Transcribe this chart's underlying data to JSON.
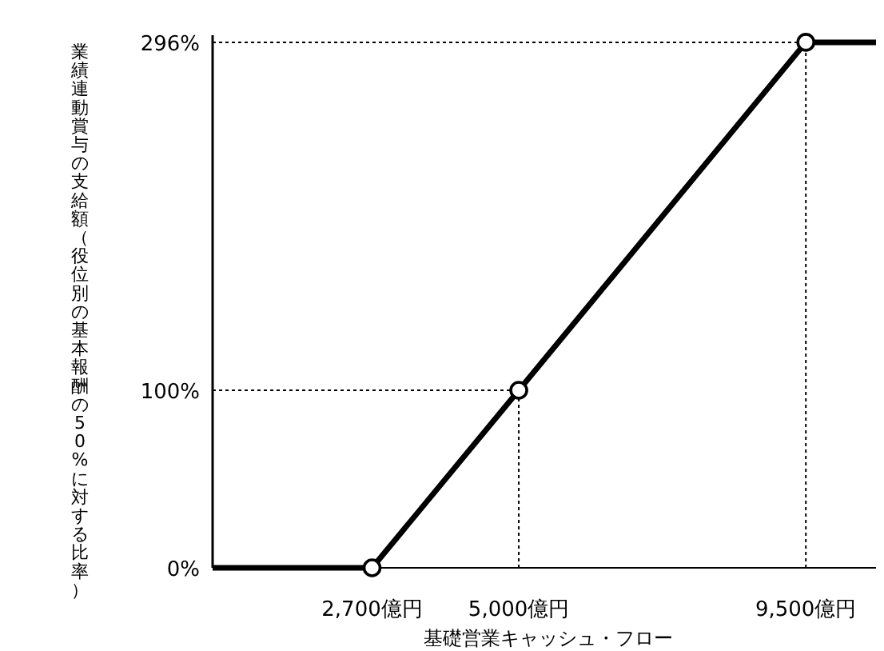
{
  "chart_data": {
    "type": "line",
    "xlabel": "基礎営業キャッシュ・フロー",
    "ylabel": "業績連動賞与の支給額（役位別の基本報酬の50%に対する比率）",
    "xlim": [
      200,
      10600
    ],
    "ylim": [
      0,
      300
    ],
    "xticks": [
      {
        "value": 2700,
        "label": "2,700億円"
      },
      {
        "value": 5000,
        "label": "5,000億円"
      },
      {
        "value": 9500,
        "label": "9,500億円"
      }
    ],
    "yticks": [
      {
        "value": 0,
        "label": "0%"
      },
      {
        "value": 100,
        "label": "100%"
      },
      {
        "value": 296,
        "label": "296%"
      }
    ],
    "series": [
      {
        "color": "#000000",
        "x": [
          200,
          2700,
          5000,
          9500,
          10600
        ],
        "values": [
          0,
          0,
          100,
          296,
          296
        ],
        "marker": "none"
      },
      {
        "type": "scatter",
        "color": "#000000",
        "x": [
          2700,
          5000,
          9500
        ],
        "values": [
          0,
          100,
          296
        ],
        "marker": "circle"
      }
    ],
    "ref_lines": [
      {
        "axis": "x",
        "value": 5000,
        "line_style": "dotted",
        "color": "#000000"
      },
      {
        "axis": "y",
        "value": 100,
        "line_style": "dotted",
        "color": "#000000"
      },
      {
        "axis": "x",
        "value": 9500,
        "line_style": "dotted",
        "color": "#000000"
      },
      {
        "axis": "y",
        "value": 296,
        "line_style": "dotted",
        "color": "#000000"
      }
    ],
    "grid": false
  }
}
